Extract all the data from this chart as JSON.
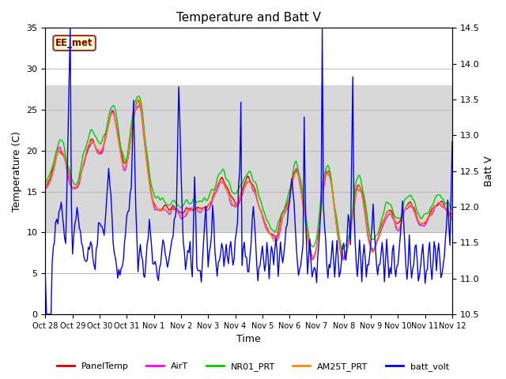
{
  "title": "Temperature and Batt V",
  "xlabel": "Time",
  "ylabel_left": "Temperature (C)",
  "ylabel_right": "Batt V",
  "ylim_left": [
    0,
    35
  ],
  "ylim_right": [
    10.5,
    14.5
  ],
  "xlim": [
    0,
    360
  ],
  "x_tick_labels": [
    "Oct 28",
    "Oct 29",
    "Oct 30",
    "Oct 31",
    "Nov 1",
    "Nov 2",
    "Nov 3",
    "Nov 4",
    "Nov 5",
    "Nov 6",
    "Nov 7",
    "Nov 8",
    "Nov 9",
    "Nov 10",
    "Nov 11",
    "Nov 12"
  ],
  "x_tick_positions": [
    0,
    24,
    48,
    72,
    96,
    120,
    144,
    168,
    192,
    216,
    240,
    264,
    288,
    312,
    336,
    360
  ],
  "shaded_band": [
    10,
    28
  ],
  "annotation_text": "EE_met",
  "colors": {
    "PanelTemp": "#dd0000",
    "AirT": "#ff00ff",
    "NR01_PRT": "#00cc00",
    "AM25T_PRT": "#ff8800",
    "batt_volt": "#0000ff"
  },
  "background_color": "#ffffff",
  "band_color": "#d8d8d8",
  "title_fontsize": 11,
  "axis_fontsize": 9,
  "tick_fontsize": 8
}
